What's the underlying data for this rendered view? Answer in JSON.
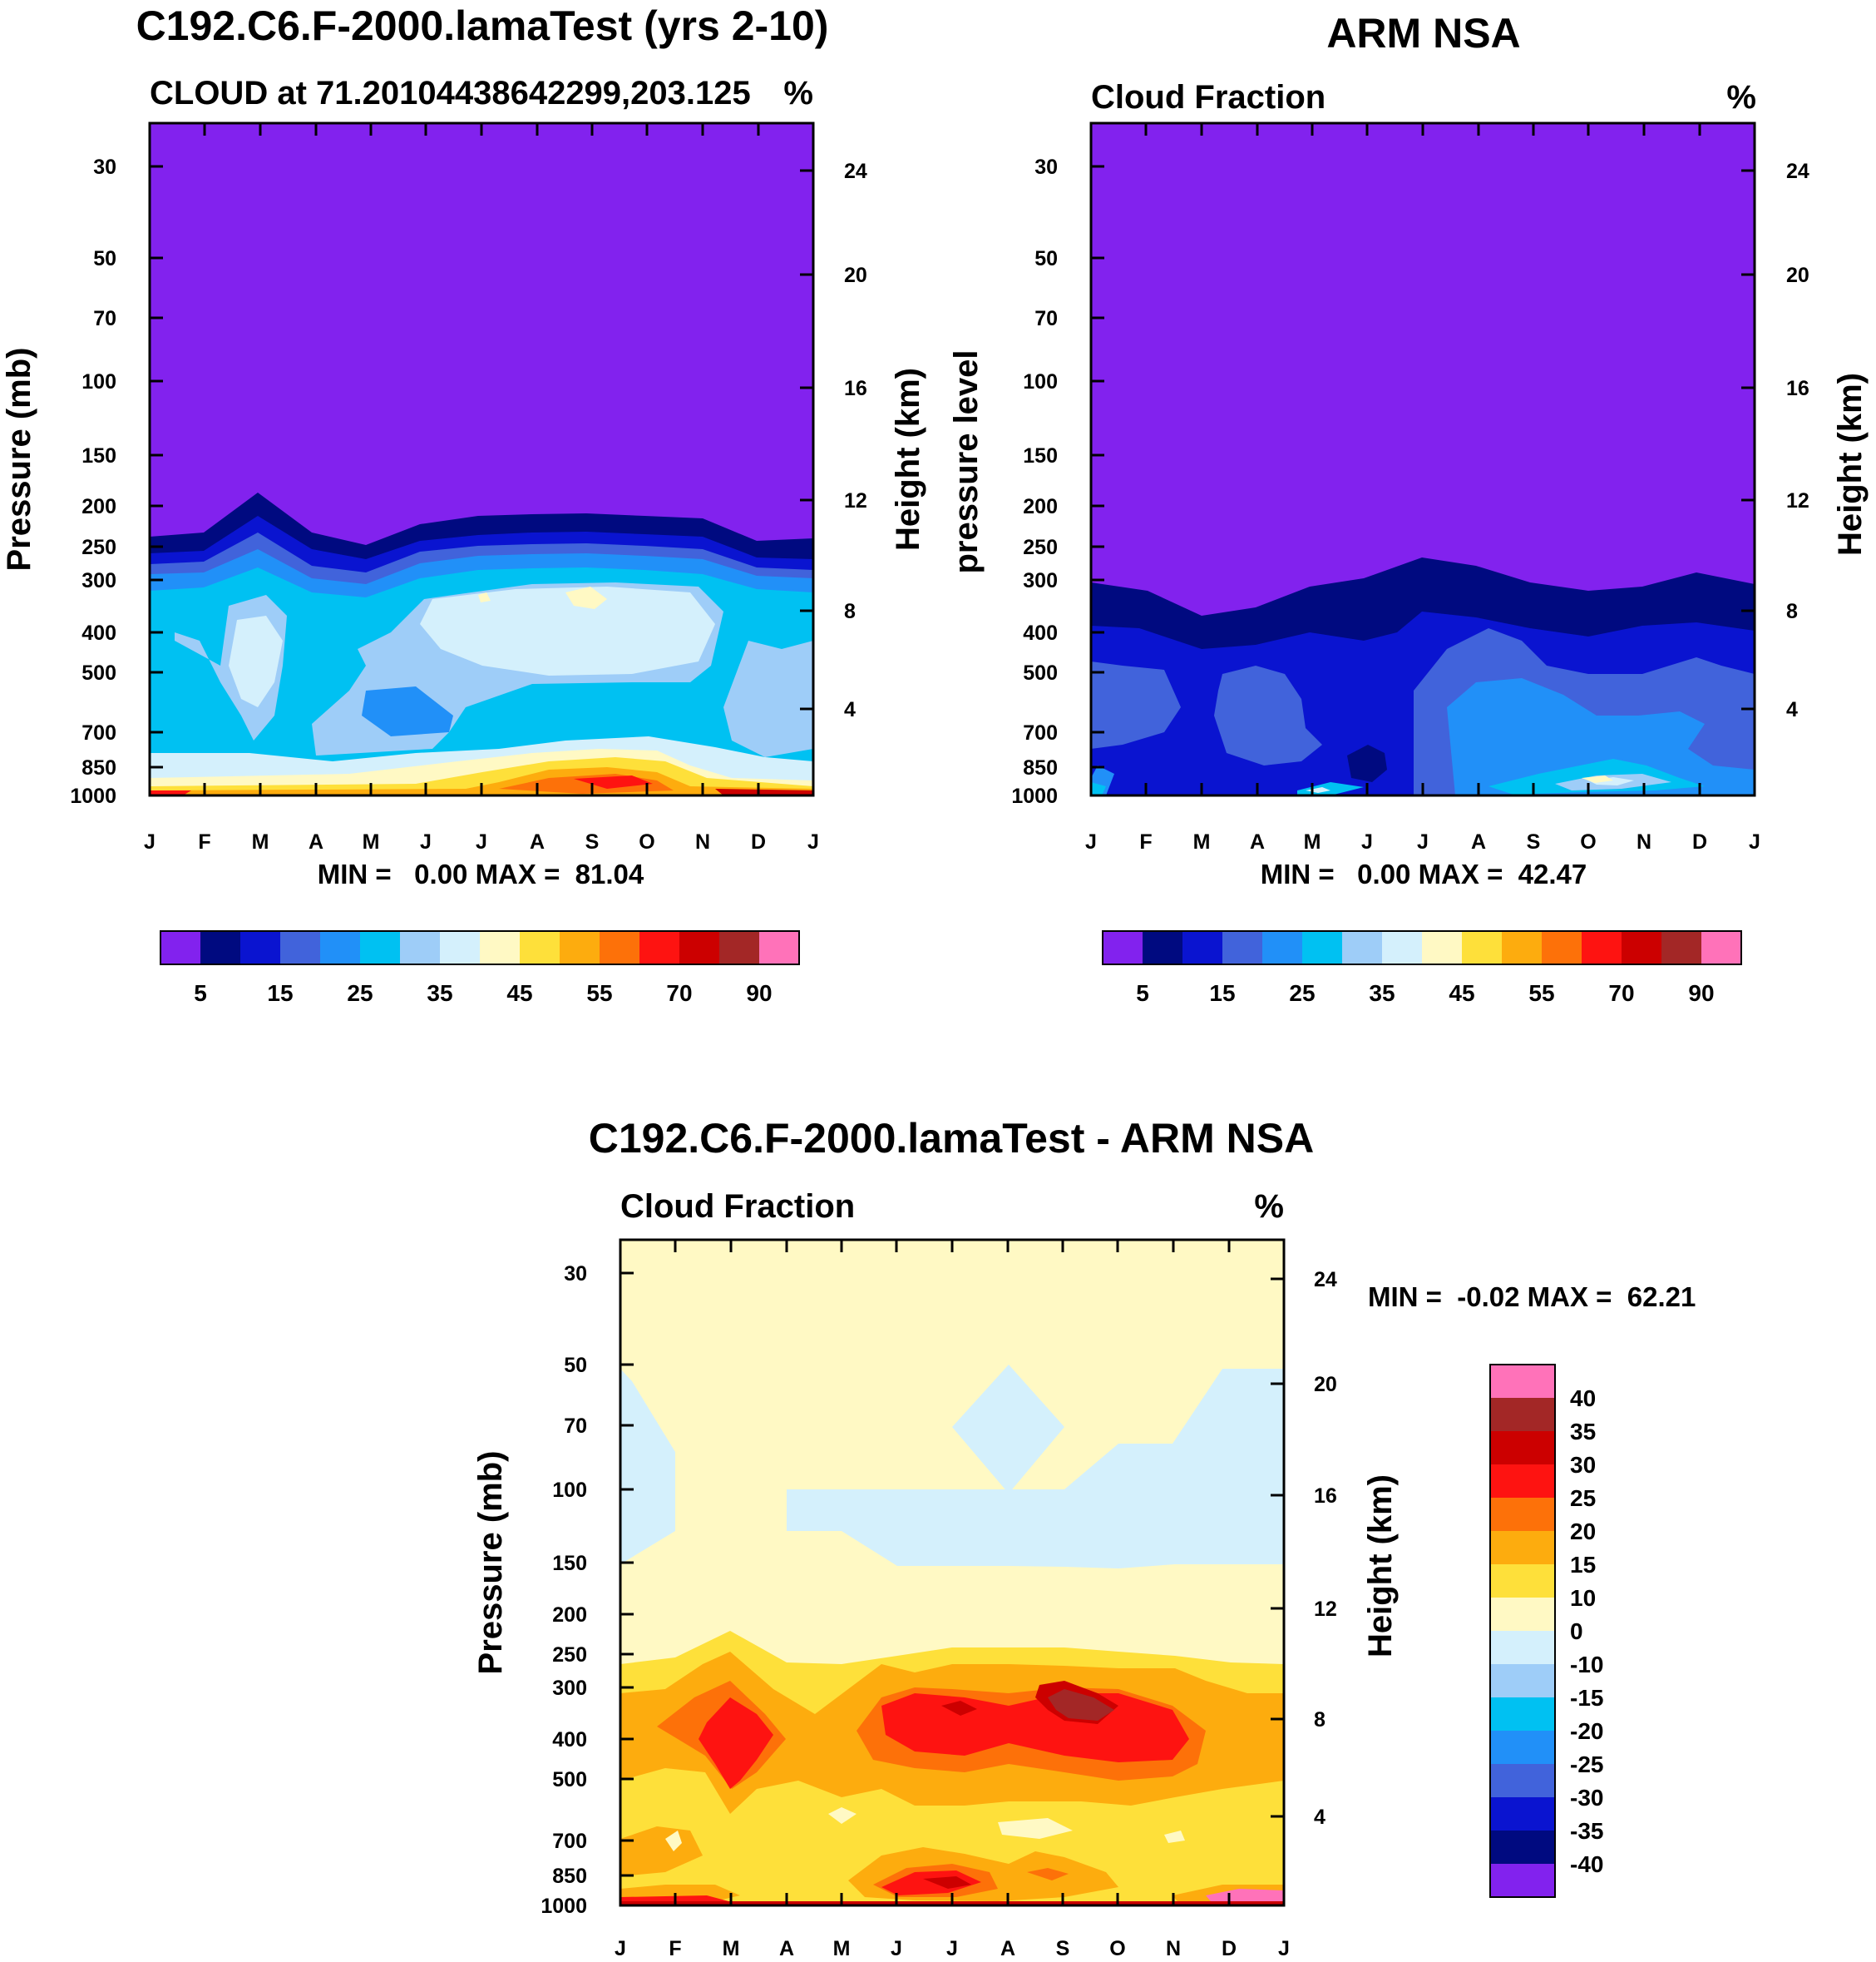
{
  "colors": {
    "cloud": [
      "#8222ee",
      "#000a80",
      "#0a14d0",
      "#4163db",
      "#2190f8",
      "#00c1f2",
      "#9ecdf8",
      "#d4f0fc",
      "#fff9c4",
      "#fee03a",
      "#fdac0e",
      "#fd7109",
      "#fe1311",
      "#cc0000",
      "#a32726",
      "#ff72b9"
    ],
    "diff": [
      "#8222ee",
      "#000a80",
      "#0a14d0",
      "#4163db",
      "#2190f8",
      "#00c1f2",
      "#9ecdf8",
      "#d4f0fc",
      "#fff9c4",
      "#fee03a",
      "#fdac0e",
      "#fd7109",
      "#fe1311",
      "#cc0000",
      "#a32726",
      "#ff72b9"
    ]
  },
  "chart_data": [
    {
      "type": "contour",
      "title": "C192.C6.F-2000.lamaTest (yrs 2-10)",
      "subtitle_left": "CLOUD at 71.20104438642299,203.125",
      "subtitle_right": "%",
      "ylabel": "Pressure (mb)",
      "y2label": "Height (km)",
      "months": [
        "J",
        "F",
        "M",
        "A",
        "M",
        "J",
        "J",
        "A",
        "S",
        "O",
        "N",
        "D",
        "J"
      ],
      "pressure_ticks": [
        "30",
        "50",
        "70",
        "100",
        "150",
        "200",
        "250",
        "300",
        "400",
        "500",
        "700",
        "850",
        "1000"
      ],
      "height_ticks": [
        "24",
        "20",
        "16",
        "12",
        "8",
        "4"
      ],
      "minmax": "MIN =   0.00 MAX =  81.04",
      "colorbar_labels": [
        "5",
        "15",
        "25",
        "35",
        "45",
        "55",
        "70",
        "90"
      ],
      "stats": {
        "min": 0.0,
        "max": 81.04
      }
    },
    {
      "type": "contour",
      "title": "ARM NSA",
      "subtitle_left": "Cloud Fraction",
      "subtitle_right": "%",
      "ylabel": "pressure level",
      "y2label": "Height (km)",
      "months": [
        "J",
        "F",
        "M",
        "A",
        "M",
        "J",
        "J",
        "A",
        "S",
        "O",
        "N",
        "D",
        "J"
      ],
      "pressure_ticks": [
        "30",
        "50",
        "70",
        "100",
        "150",
        "200",
        "250",
        "300",
        "400",
        "500",
        "700",
        "850",
        "1000"
      ],
      "height_ticks": [
        "24",
        "20",
        "16",
        "12",
        "8",
        "4"
      ],
      "minmax": "MIN =   0.00 MAX =  42.47",
      "colorbar_labels": [
        "5",
        "15",
        "25",
        "35",
        "45",
        "55",
        "70",
        "90"
      ],
      "stats": {
        "min": 0.0,
        "max": 42.47
      }
    },
    {
      "type": "contour",
      "title": "C192.C6.F-2000.lamaTest - ARM NSA",
      "subtitle_left": "Cloud Fraction",
      "subtitle_right": "%",
      "ylabel": "Pressure (mb)",
      "y2label": "Height (km)",
      "months": [
        "J",
        "F",
        "M",
        "A",
        "M",
        "J",
        "J",
        "A",
        "S",
        "O",
        "N",
        "D",
        "J"
      ],
      "pressure_ticks": [
        "30",
        "50",
        "70",
        "100",
        "150",
        "200",
        "250",
        "300",
        "400",
        "500",
        "700",
        "850",
        "1000"
      ],
      "height_ticks": [
        "24",
        "20",
        "16",
        "12",
        "8",
        "4"
      ],
      "minmax": "MIN =  -0.02 MAX =  62.21",
      "colorbar_labels": [
        "40",
        "35",
        "30",
        "25",
        "20",
        "15",
        "10",
        "0",
        "-10",
        "-15",
        "-20",
        "-25",
        "-30",
        "-35",
        "-40"
      ],
      "stats": {
        "min": -0.02,
        "max": 62.21
      }
    }
  ]
}
